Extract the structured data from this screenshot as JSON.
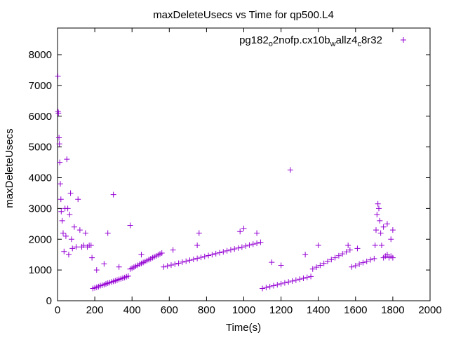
{
  "chart_data": {
    "type": "scatter",
    "title": "maxDeleteUsecs vs Time for qp500.L4",
    "xlabel": "Time(s)",
    "ylabel": "maxDeleteUsecs",
    "xlim": [
      0,
      2000
    ],
    "ylim": [
      0,
      8800
    ],
    "xticks": [
      0,
      200,
      400,
      600,
      800,
      1000,
      1200,
      1400,
      1600,
      1800,
      2000
    ],
    "yticks": [
      0,
      1000,
      2000,
      3000,
      4000,
      5000,
      6000,
      7000,
      8000
    ],
    "grid": false,
    "legend_position": "top-right",
    "series": [
      {
        "name": "pg182_o2nofp.cx10b_wallz4_c8r32",
        "legend": {
          "base1": "pg182",
          "sub1": "o",
          "base2": "2nofp.cx10b",
          "sub2": "w",
          "base3": "allz4",
          "sub3": "c",
          "base4": "8r32"
        },
        "color": "#9400d3",
        "marker": "plus",
        "points": [
          [
            2,
            7300
          ],
          [
            3,
            6150
          ],
          [
            5,
            6100
          ],
          [
            8,
            5300
          ],
          [
            10,
            5100
          ],
          [
            12,
            4500
          ],
          [
            15,
            3800
          ],
          [
            18,
            3300
          ],
          [
            20,
            2900
          ],
          [
            25,
            2600
          ],
          [
            30,
            2200
          ],
          [
            35,
            1600
          ],
          [
            40,
            3000
          ],
          [
            45,
            2100
          ],
          [
            50,
            4600
          ],
          [
            55,
            3000
          ],
          [
            60,
            1500
          ],
          [
            65,
            2800
          ],
          [
            70,
            3500
          ],
          [
            75,
            2000
          ],
          [
            80,
            1700
          ],
          [
            90,
            2400
          ],
          [
            100,
            1750
          ],
          [
            110,
            3300
          ],
          [
            120,
            2300
          ],
          [
            130,
            1750
          ],
          [
            140,
            1800
          ],
          [
            150,
            2200
          ],
          [
            160,
            1750
          ],
          [
            170,
            1800
          ],
          [
            180,
            1800
          ],
          [
            185,
            1400
          ],
          [
            190,
            400
          ],
          [
            200,
            420
          ],
          [
            210,
            440
          ],
          [
            220,
            460
          ],
          [
            230,
            490
          ],
          [
            240,
            505
          ],
          [
            250,
            525
          ],
          [
            260,
            550
          ],
          [
            270,
            570
          ],
          [
            280,
            590
          ],
          [
            290,
            610
          ],
          [
            300,
            630
          ],
          [
            310,
            650
          ],
          [
            320,
            670
          ],
          [
            330,
            695
          ],
          [
            340,
            715
          ],
          [
            350,
            735
          ],
          [
            360,
            755
          ],
          [
            370,
            780
          ],
          [
            380,
            800
          ],
          [
            390,
            1030
          ],
          [
            400,
            1060
          ],
          [
            410,
            1090
          ],
          [
            420,
            1120
          ],
          [
            430,
            1150
          ],
          [
            440,
            1185
          ],
          [
            450,
            1215
          ],
          [
            460,
            1245
          ],
          [
            470,
            1275
          ],
          [
            480,
            1305
          ],
          [
            490,
            1335
          ],
          [
            500,
            1365
          ],
          [
            510,
            1400
          ],
          [
            520,
            1430
          ],
          [
            530,
            1460
          ],
          [
            540,
            1490
          ],
          [
            550,
            1520
          ],
          [
            560,
            1550
          ],
          [
            570,
            1100
          ],
          [
            590,
            1130
          ],
          [
            610,
            1160
          ],
          [
            630,
            1190
          ],
          [
            650,
            1220
          ],
          [
            670,
            1255
          ],
          [
            690,
            1285
          ],
          [
            710,
            1315
          ],
          [
            730,
            1345
          ],
          [
            750,
            1375
          ],
          [
            770,
            1410
          ],
          [
            790,
            1440
          ],
          [
            810,
            1470
          ],
          [
            830,
            1500
          ],
          [
            850,
            1530
          ],
          [
            870,
            1560
          ],
          [
            890,
            1590
          ],
          [
            910,
            1625
          ],
          [
            930,
            1655
          ],
          [
            950,
            1685
          ],
          [
            970,
            1715
          ],
          [
            990,
            1745
          ],
          [
            1010,
            1780
          ],
          [
            1030,
            1810
          ],
          [
            1050,
            1840
          ],
          [
            1070,
            1870
          ],
          [
            1090,
            1900
          ],
          [
            1100,
            400
          ],
          [
            1120,
            430
          ],
          [
            1140,
            460
          ],
          [
            1160,
            490
          ],
          [
            1180,
            520
          ],
          [
            1200,
            550
          ],
          [
            1220,
            580
          ],
          [
            1240,
            610
          ],
          [
            1260,
            640
          ],
          [
            1280,
            670
          ],
          [
            1300,
            700
          ],
          [
            1320,
            730
          ],
          [
            1340,
            760
          ],
          [
            1360,
            790
          ],
          [
            1370,
            1030
          ],
          [
            1390,
            1090
          ],
          [
            1410,
            1150
          ],
          [
            1430,
            1215
          ],
          [
            1450,
            1280
          ],
          [
            1470,
            1340
          ],
          [
            1490,
            1400
          ],
          [
            1510,
            1465
          ],
          [
            1530,
            1525
          ],
          [
            1550,
            1590
          ],
          [
            1570,
            1650
          ],
          [
            1580,
            1100
          ],
          [
            1600,
            1140
          ],
          [
            1620,
            1190
          ],
          [
            1640,
            1240
          ],
          [
            1660,
            1280
          ],
          [
            1680,
            1330
          ],
          [
            1700,
            1370
          ],
          [
            1705,
            1800
          ],
          [
            1710,
            2300
          ],
          [
            1715,
            2800
          ],
          [
            1720,
            3150
          ],
          [
            1725,
            3000
          ],
          [
            1730,
            2600
          ],
          [
            1735,
            2200
          ],
          [
            1740,
            1800
          ],
          [
            1750,
            1400
          ],
          [
            1760,
            1450
          ],
          [
            1770,
            1500
          ],
          [
            1780,
            1400
          ],
          [
            1790,
            1450
          ],
          [
            1800,
            1400
          ],
          [
            1750,
            2400
          ],
          [
            1770,
            2500
          ],
          [
            1790,
            2000
          ],
          [
            1800,
            2300
          ],
          [
            300,
            3450
          ],
          [
            270,
            2200
          ],
          [
            390,
            2450
          ],
          [
            210,
            1000
          ],
          [
            250,
            1200
          ],
          [
            330,
            1100
          ],
          [
            450,
            1500
          ],
          [
            620,
            1650
          ],
          [
            750,
            1800
          ],
          [
            760,
            2200
          ],
          [
            980,
            2250
          ],
          [
            1000,
            2350
          ],
          [
            1070,
            2200
          ],
          [
            1250,
            4250
          ],
          [
            1150,
            1250
          ],
          [
            1200,
            1150
          ],
          [
            1330,
            1500
          ],
          [
            1400,
            1800
          ],
          [
            1560,
            1800
          ],
          [
            1610,
            1700
          ]
        ]
      }
    ]
  }
}
